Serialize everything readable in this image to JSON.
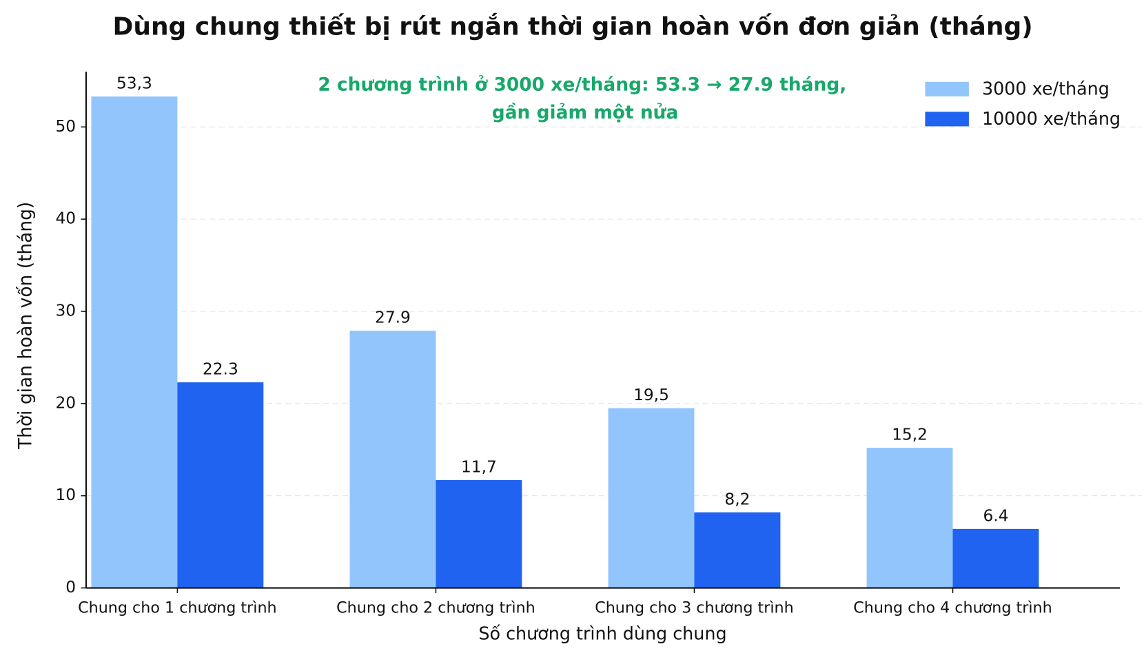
{
  "chart_data": {
    "type": "bar",
    "title": "Dùng chung thiết bị rút ngắn thời gian hoàn vốn đơn giản (tháng)",
    "annotation": [
      "2 chương trình ở 3000 xe/tháng: 53.3 → 27.9 tháng,",
      "gần giảm một nửa"
    ],
    "xlabel": "Số chương trình dùng chung",
    "ylabel": "Thời gian hoàn vốn (tháng)",
    "categories": [
      "Chung cho 1 chương trình",
      "Chung cho 2 chương trình",
      "Chung cho 3 chương trình",
      "Chung cho 4 chương trình"
    ],
    "series": [
      {
        "name": "3000 xe/tháng",
        "color": "#93c5fd",
        "values": [
          53.3,
          27.9,
          19.5,
          15.2
        ],
        "value_labels": [
          "53,3",
          "27.9",
          "19,5",
          "15,2"
        ]
      },
      {
        "name": "10000 xe/tháng",
        "color": "#1f63f0",
        "values": [
          22.3,
          11.7,
          8.2,
          6.4
        ],
        "value_labels": [
          "22.3",
          "11,7",
          "8,2",
          "6.4"
        ]
      }
    ],
    "ylim": [
      0,
      56
    ],
    "yticks": [
      0,
      10,
      20,
      30,
      40,
      50
    ],
    "grid": true,
    "legend": "upper right"
  }
}
